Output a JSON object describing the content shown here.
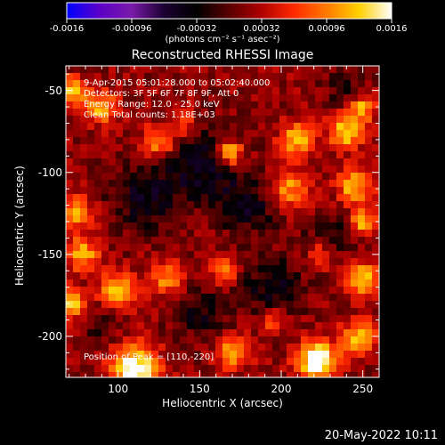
{
  "colors": {
    "background": "#000000",
    "text": "#ffffff",
    "colormap": [
      "#0000ff",
      "#5a00c8",
      "#7a1aa8",
      "#1a0030",
      "#000000",
      "#5a0000",
      "#b00000",
      "#ff2a00",
      "#ff7a00",
      "#ffd000",
      "#ffffff"
    ]
  },
  "colorbar": {
    "ticks": [
      "-0.0016",
      "-0.00096",
      "-0.00032",
      "0.00032",
      "0.00096",
      "0.0016"
    ],
    "units_label": "(photons cm⁻² s⁻¹ asec⁻²)",
    "range": [
      -0.0016,
      0.0016
    ]
  },
  "annotations": {
    "time_range": "9-Apr-2015 05:01:28.000 to 05:02:40.000",
    "detectors": "Detectors: 3F 5F 6F 7F 8F 9F, Att 0",
    "energy_range": "Energy Range: 12.0 - 25.0 keV",
    "clean_counts": "Clean     Total counts: 1.18E+03",
    "peak": "Position of Peak = [110,-220]"
  },
  "timestamp": "20-May-2022 10:11",
  "chart_data": {
    "type": "heatmap",
    "title": "Reconstructed RHESSI Image",
    "xlabel": "Heliocentric X (arcsec)",
    "ylabel": "Heliocentric Y (arcsec)",
    "xlim": [
      68,
      260
    ],
    "ylim": [
      -225,
      -35
    ],
    "xticks": [
      100,
      150,
      200,
      250
    ],
    "yticks": [
      -50,
      -100,
      -150,
      -200
    ],
    "xtick_labels": [
      "100",
      "150",
      "200",
      "250"
    ],
    "ytick_labels": [
      "-50",
      "-100",
      "-150",
      "-200"
    ],
    "value_range": [
      -0.0016,
      0.0016
    ],
    "peak_position": [
      110,
      -220
    ],
    "hot_spots": [
      {
        "x": 72,
        "y": -50,
        "r": 8,
        "v": 0.0012
      },
      {
        "x": 90,
        "y": -60,
        "r": 10,
        "v": 0.001
      },
      {
        "x": 125,
        "y": -82,
        "r": 10,
        "v": 0.001
      },
      {
        "x": 140,
        "y": -70,
        "r": 8,
        "v": 0.0007
      },
      {
        "x": 168,
        "y": -88,
        "r": 8,
        "v": 0.0013
      },
      {
        "x": 210,
        "y": -80,
        "r": 10,
        "v": 0.0011
      },
      {
        "x": 240,
        "y": -75,
        "r": 10,
        "v": 0.0012
      },
      {
        "x": 250,
        "y": -60,
        "r": 8,
        "v": 0.001
      },
      {
        "x": 205,
        "y": -110,
        "r": 12,
        "v": 0.0009
      },
      {
        "x": 245,
        "y": -108,
        "r": 10,
        "v": 0.0011
      },
      {
        "x": 250,
        "y": -130,
        "r": 8,
        "v": 0.001
      },
      {
        "x": 75,
        "y": -125,
        "r": 10,
        "v": 0.0009
      },
      {
        "x": 78,
        "y": -150,
        "r": 10,
        "v": 0.001
      },
      {
        "x": 130,
        "y": -165,
        "r": 10,
        "v": 0.0009
      },
      {
        "x": 165,
        "y": -160,
        "r": 8,
        "v": 0.0008
      },
      {
        "x": 225,
        "y": -150,
        "r": 8,
        "v": 0.0008
      },
      {
        "x": 250,
        "y": -165,
        "r": 10,
        "v": 0.0011
      },
      {
        "x": 100,
        "y": -172,
        "r": 10,
        "v": 0.0012
      },
      {
        "x": 72,
        "y": -180,
        "r": 8,
        "v": 0.0013
      },
      {
        "x": 110,
        "y": -220,
        "r": 14,
        "v": 0.0016
      },
      {
        "x": 222,
        "y": -215,
        "r": 12,
        "v": 0.0016
      },
      {
        "x": 170,
        "y": -210,
        "r": 10,
        "v": 0.0009
      },
      {
        "x": 248,
        "y": -200,
        "r": 10,
        "v": 0.0011
      },
      {
        "x": 195,
        "y": -190,
        "r": 8,
        "v": 0.0007
      }
    ],
    "cold_regions": [
      {
        "x": 150,
        "y": -95,
        "r": 22,
        "v": -0.0007
      },
      {
        "x": 115,
        "y": -115,
        "r": 20,
        "v": -0.0006
      },
      {
        "x": 180,
        "y": -120,
        "r": 18,
        "v": -0.0006
      },
      {
        "x": 230,
        "y": -140,
        "r": 14,
        "v": -0.0005
      },
      {
        "x": 195,
        "y": -170,
        "r": 18,
        "v": -0.0006
      },
      {
        "x": 150,
        "y": -185,
        "r": 16,
        "v": -0.0005
      },
      {
        "x": 90,
        "y": -195,
        "r": 10,
        "v": -0.0004
      },
      {
        "x": 240,
        "y": -50,
        "r": 12,
        "v": -0.0004
      }
    ]
  }
}
